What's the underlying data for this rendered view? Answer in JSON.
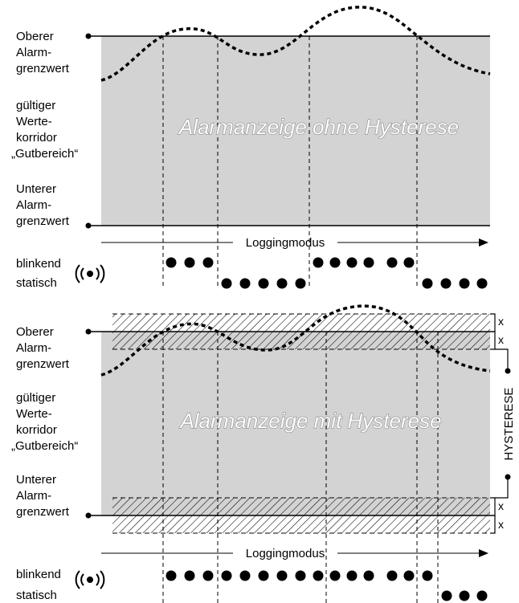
{
  "top": {
    "title": "Alarmanzeige ohne Hysterese",
    "labels": {
      "upper_limit": [
        "Oberer",
        "Alarm-",
        "grenzwert"
      ],
      "valid_range": [
        "gültiger",
        "Werte-",
        "korridor",
        "„Gutbereich“"
      ],
      "lower_limit": [
        "Unterer",
        "Alarm-",
        "grenzwert"
      ]
    },
    "mode_label": "Loggingmodus",
    "legend": {
      "blinking": "blinkend",
      "static": "statisch"
    }
  },
  "bottom": {
    "title": "Alarmanzeige mit Hysterese",
    "labels": {
      "upper_limit": [
        "Oberer",
        "Alarm-",
        "grenzwert"
      ],
      "valid_range": [
        "gültiger",
        "Werte-",
        "korridor",
        "„Gutbereich“"
      ],
      "lower_limit": [
        "Unterer",
        "Alarm-",
        "grenzwert"
      ]
    },
    "mode_label": "Loggingmodus",
    "legend": {
      "blinking": "blinkend",
      "static": "statisch"
    },
    "hysteresis_label": "HYSTERESE",
    "x_marker": "x"
  },
  "icons": {
    "alarm": "alarm-signal-icon"
  }
}
